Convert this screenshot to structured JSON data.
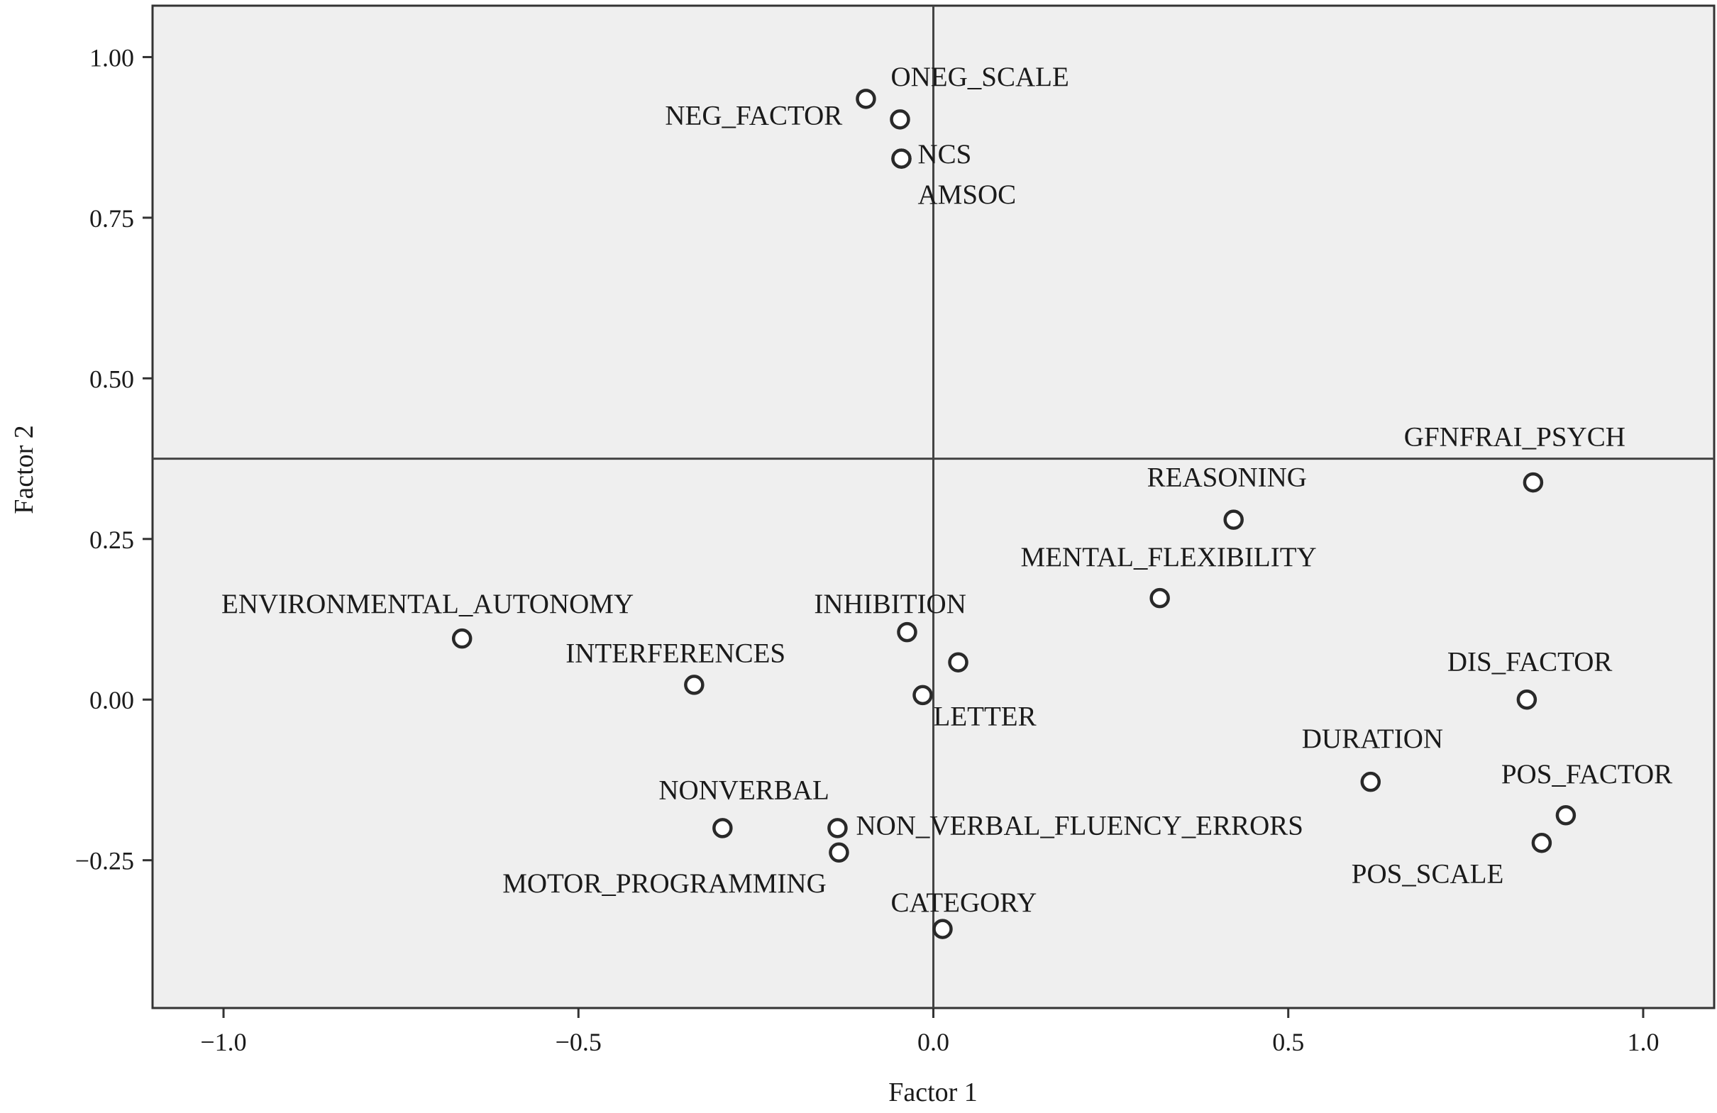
{
  "chart_data": {
    "type": "scatter",
    "xlabel": "Factor 1",
    "ylabel": "Factor 2",
    "xlim": [
      -1.1,
      1.1
    ],
    "ylim": [
      -0.48,
      1.08
    ],
    "x_ticks": [
      {
        "value": -1.0,
        "label": "−1.0"
      },
      {
        "value": -0.5,
        "label": "−0.5"
      },
      {
        "value": 0.0,
        "label": "0.0"
      },
      {
        "value": 0.5,
        "label": "0.5"
      },
      {
        "value": 1.0,
        "label": "1.0"
      }
    ],
    "y_ticks": [
      {
        "value": 1.0,
        "label": "1.00"
      },
      {
        "value": 0.75,
        "label": "0.75"
      },
      {
        "value": 0.5,
        "label": "0.50"
      },
      {
        "value": 0.25,
        "label": "0.25"
      },
      {
        "value": 0.0,
        "label": "0.00"
      },
      {
        "value": -0.25,
        "label": "−0.25"
      }
    ],
    "reference_lines": {
      "x": 0.0,
      "y": 0.375
    },
    "points": [
      {
        "x": -0.095,
        "y": 0.935,
        "label": "ONEG_SCALE",
        "label_x": -0.06,
        "label_y": 0.955
      },
      {
        "x": -0.047,
        "y": 0.903,
        "label": "NEG_FACTOR",
        "label_x": -0.378,
        "label_y": 0.895
      },
      {
        "x": -0.045,
        "y": 0.842,
        "label": "NCS",
        "label_x": -0.022,
        "label_y": 0.835
      },
      {
        "x": -0.045,
        "y": 0.842,
        "label": "AMSOC",
        "label_x": -0.022,
        "label_y": 0.772
      },
      {
        "x": 0.845,
        "y": 0.338,
        "label": "GFNFRAI_PSYCH",
        "label_x": 0.663,
        "label_y": 0.395
      },
      {
        "x": 0.423,
        "y": 0.28,
        "label": "REASONING",
        "label_x": 0.301,
        "label_y": 0.332
      },
      {
        "x": 0.319,
        "y": 0.158,
        "label": "MENTAL_FLEXIBILITY",
        "label_x": 0.123,
        "label_y": 0.208
      },
      {
        "x": -0.664,
        "y": 0.095,
        "label": "ENVIRONMENTAL_AUTONOMY",
        "label_x": -1.003,
        "label_y": 0.135
      },
      {
        "x": -0.037,
        "y": 0.105,
        "label": "INHIBITION",
        "label_x": -0.168,
        "label_y": 0.135
      },
      {
        "x": 0.035,
        "y": 0.058,
        "label": "",
        "label_x": 0.0,
        "label_y": 0.0
      },
      {
        "x": -0.337,
        "y": 0.023,
        "label": "INTERFERENCES",
        "label_x": -0.518,
        "label_y": 0.058
      },
      {
        "x": -0.015,
        "y": 0.007,
        "label": "LETTER",
        "label_x": 0.0,
        "label_y": -0.04
      },
      {
        "x": 0.836,
        "y": 0.0,
        "label": "DIS_FACTOR",
        "label_x": 0.724,
        "label_y": 0.045
      },
      {
        "x": 0.616,
        "y": -0.128,
        "label": "DURATION",
        "label_x": 0.519,
        "label_y": -0.075
      },
      {
        "x": 0.891,
        "y": -0.18,
        "label": "POS_FACTOR",
        "label_x": 0.8,
        "label_y": -0.13
      },
      {
        "x": 0.857,
        "y": -0.223,
        "label": "POS_SCALE",
        "label_x": 0.589,
        "label_y": -0.285
      },
      {
        "x": -0.297,
        "y": -0.2,
        "label": "NONVERBAL",
        "label_x": -0.387,
        "label_y": -0.155
      },
      {
        "x": -0.135,
        "y": -0.2,
        "label": "NON_VERBAL_FLUENCY_ERRORS",
        "label_x": -0.109,
        "label_y": -0.21
      },
      {
        "x": -0.133,
        "y": -0.238,
        "label": "MOTOR_PROGRAMMING",
        "label_x": -0.607,
        "label_y": -0.3
      },
      {
        "x": 0.013,
        "y": -0.357,
        "label": "CATEGORY",
        "label_x": -0.06,
        "label_y": -0.33
      }
    ]
  }
}
